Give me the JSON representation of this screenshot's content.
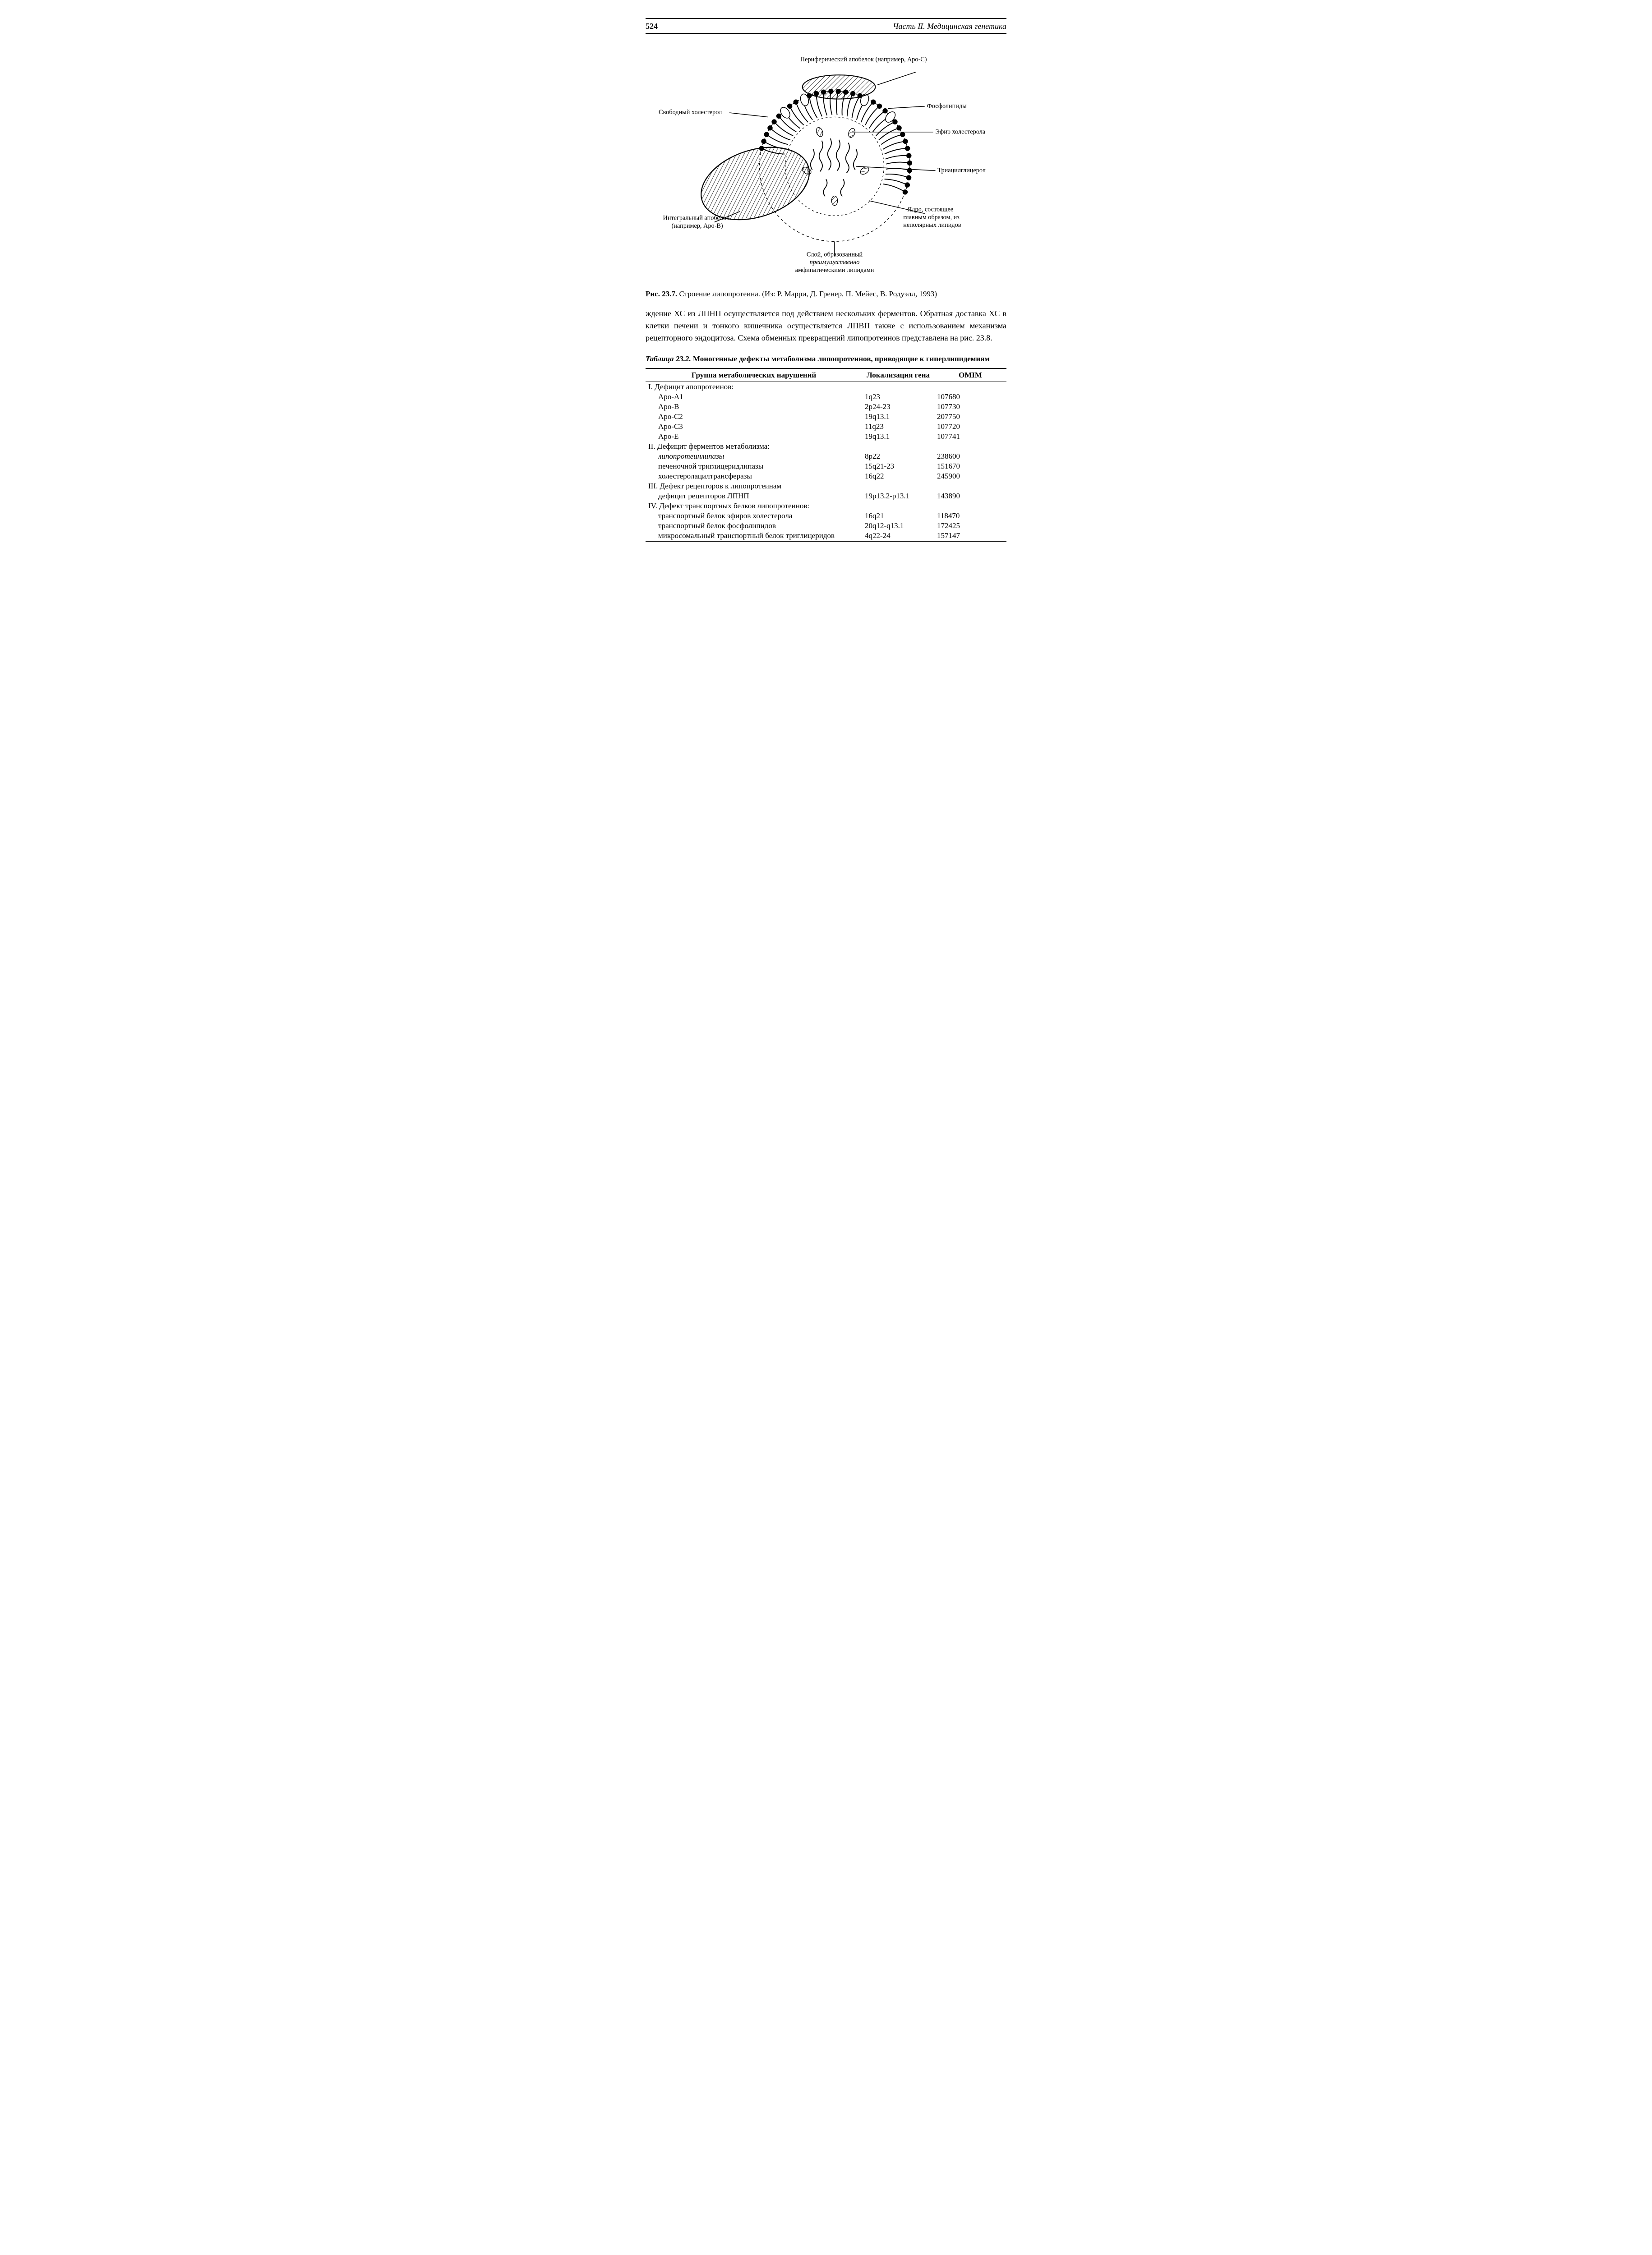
{
  "page": {
    "number": "524",
    "running_head": "Часть II. Медицинская генетика"
  },
  "figure": {
    "labels": {
      "peripheral": "Периферический апобелок (например, Apo-C)",
      "free_chol": "Свободный холестерол",
      "phospholipids": "Фосфолипиды",
      "chol_ester": "Эфир холестерола",
      "triacylglycerol": "Триацилглицерол",
      "integral": "Интегральный апобелок\n(например, Apo-B)",
      "core": "Ядро, состоящее\nглавным образом, из\nнеполярных липидов",
      "shell": "Слой, образованный\nпреимущественно\nамфипатическими липидами"
    },
    "caption_label": "Рис. 23.7.",
    "caption_text": "Строение липопротеина. (Из: Р. Марри, Д. Гренер, П. Мейес, В. Родуэлл, 1993)"
  },
  "paragraph": "ждение ХС из ЛПНП осуществляется под действием нескольких ферментов. Обратная доставка ХС в клетки печени и тонкого кишечника осуществляется ЛПВП также с использованием механизма рецепторного эндоцитоза. Схема обменных превращений липопротеинов представлена на рис. 23.8.",
  "table": {
    "caption_label": "Таблица 23.2.",
    "caption_text": "Моногенные дефекты метаболизма липопротеинов, приводящие к гиперлипидемиям",
    "columns": [
      "Группа метаболических нарушений",
      "Локализация гена",
      "OMIM"
    ],
    "col_widths_pct": [
      60,
      20,
      20
    ],
    "rows": [
      {
        "c0": "I. Дефицит апопротеинов:",
        "c1": "",
        "c2": "",
        "style": "head"
      },
      {
        "c0": "Apo-A1",
        "c1": "1q23",
        "c2": "107680",
        "style": "ind1"
      },
      {
        "c0": "Apo-B",
        "c1": "2p24-23",
        "c2": "107730",
        "style": "ind1"
      },
      {
        "c0": "Apo-C2",
        "c1": "19q13.1",
        "c2": "207750",
        "style": "ind1"
      },
      {
        "c0": "Apo-C3",
        "c1": "11q23",
        "c2": "107720",
        "style": "ind1"
      },
      {
        "c0": "Apo-E",
        "c1": "19q13.1",
        "c2": "107741",
        "style": "ind1"
      },
      {
        "c0": "II. Дефицит ферментов метаболизма:",
        "c1": "",
        "c2": "",
        "style": "head"
      },
      {
        "c0": "липопротеинлипазы",
        "c1": "8p22",
        "c2": "238600",
        "style": "ind2"
      },
      {
        "c0": "печеночной триглицеридлипазы",
        "c1": "15q21-23",
        "c2": "151670",
        "style": "ind1"
      },
      {
        "c0": "холестеролацилтрансферазы",
        "c1": "16q22",
        "c2": "245900",
        "style": "ind1"
      },
      {
        "c0": "III. Дефект рецепторов к липопротеинам",
        "c1": "",
        "c2": "",
        "style": "head"
      },
      {
        "c0": "дефицит рецепторов ЛПНП",
        "c1": "19p13.2-p13.1",
        "c2": "143890",
        "style": "ind1"
      },
      {
        "c0": "IV. Дефект транспортных белков липопротеинов:",
        "c1": "",
        "c2": "",
        "style": "head"
      },
      {
        "c0": "транспортный белок эфиров холестерола",
        "c1": "16q21",
        "c2": "118470",
        "style": "ind1"
      },
      {
        "c0": "транспортный белок фосфолипидов",
        "c1": "20q12-q13.1",
        "c2": "172425",
        "style": "ind1"
      },
      {
        "c0": "микросомальный транспортный белок триглицеридов",
        "c1": "4q22-24",
        "c2": "157147",
        "style": "ind1"
      }
    ]
  },
  "style": {
    "text_color": "#000000",
    "background": "#ffffff",
    "stroke": "#000000",
    "hatch_stroke_width": 1.6,
    "outline_stroke_width": 2.2,
    "label_fontsize": 15
  }
}
